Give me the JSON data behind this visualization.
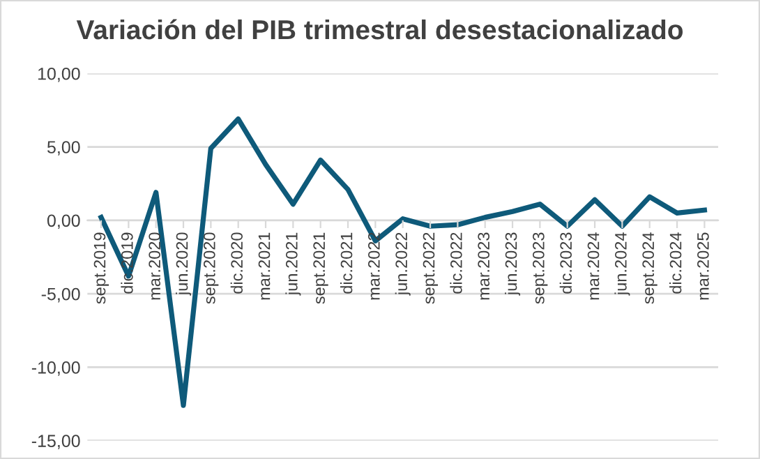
{
  "chart_data": {
    "type": "line",
    "title": "Variación del PIB trimestral desestacionalizado",
    "categories": [
      "sept.2019",
      "dic.2019",
      "mar.2020",
      "jun.2020",
      "sept.2020",
      "dic.2020",
      "mar.2021",
      "jun.2021",
      "sept.2021",
      "dic.2021",
      "mar.2022",
      "jun.2022",
      "sept.2022",
      "dic.2022",
      "mar.2023",
      "jun.2023",
      "sept.2023",
      "dic.2023",
      "mar.2024",
      "jun.2024",
      "sept.2024",
      "dic.2024",
      "mar.2025"
    ],
    "series": [
      {
        "color": "#0e5a7a",
        "values": [
          0.2,
          -3.8,
          1.9,
          -12.6,
          4.9,
          6.9,
          3.8,
          1.1,
          4.1,
          2.1,
          -1.4,
          0.1,
          -0.4,
          -0.3,
          0.2,
          0.6,
          1.1,
          -0.4,
          1.4,
          -0.4,
          1.6,
          0.5,
          0.7
        ]
      }
    ],
    "ylim": [
      -15,
      10
    ],
    "yticks": [
      {
        "value": -15,
        "label": "-15,00"
      },
      {
        "value": -10,
        "label": "-10,00"
      },
      {
        "value": -5,
        "label": "-5,00"
      },
      {
        "value": 0,
        "label": "0,00"
      },
      {
        "value": 5,
        "label": "5,00"
      },
      {
        "value": 10,
        "label": "10,00"
      }
    ],
    "grid": "y",
    "marker": "none",
    "line_style": "solid",
    "legend": false
  }
}
